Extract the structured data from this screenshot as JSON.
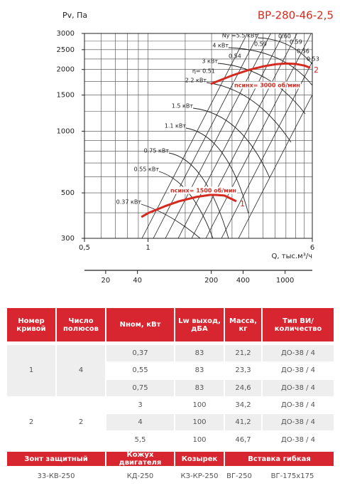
{
  "chart_data": {
    "type": "line",
    "title": "ВР-280-46-2,5",
    "y_label": "Pv, Па",
    "x_label": "Q, тыс.м³/ч",
    "xlim": [
      0.5,
      6
    ],
    "ylim": [
      300,
      3000
    ],
    "log_x": true,
    "log_y": true,
    "xticks": [
      {
        "value": 0.5,
        "label": "0,5"
      },
      1,
      6
    ],
    "yticks": [
      300,
      500,
      1000,
      1500,
      2000,
      2500,
      3000
    ],
    "x_grid": [
      0.5,
      0.6,
      0.7,
      0.8,
      0.9,
      1,
      1.5,
      2,
      2.5,
      3,
      3.5,
      4,
      4.5,
      5,
      5.5,
      6
    ],
    "y_grid": [
      300,
      400,
      500,
      600,
      700,
      800,
      900,
      1000,
      1250,
      1500,
      1750,
      2000,
      2250,
      2500,
      2750,
      3000
    ],
    "x2lim": [
      12.6,
      1810
    ],
    "x2ticks": [
      20,
      40,
      200,
      400,
      1000
    ],
    "series": [
      {
        "name": "1",
        "color": "#d42a1f",
        "x": [
          0.93,
          1,
          1.2,
          1.4,
          1.7,
          2,
          2.3,
          2.62
        ],
        "values": [
          381,
          398,
          430,
          455,
          478,
          490,
          485,
          455
        ]
      },
      {
        "name": "2",
        "color": "#d42a1f",
        "x": [
          1.98,
          2.5,
          3,
          3.5,
          4,
          4.5,
          5,
          5.5,
          5.86
        ],
        "values": [
          1700,
          1870,
          1990,
          2070,
          2120,
          2140,
          2130,
          2090,
          2040
        ]
      }
    ],
    "annotations": [
      "Ny =5.5 кВт",
      "4 кВт",
      "3 кВт",
      "η= 0.51",
      "2.2 кВт",
      "1.5 кВт",
      "1.1 кВт",
      "0.75 кВт",
      "0.55 кВт",
      "0.37 кВт",
      "0.60",
      "0.59",
      "0.59",
      "0.56",
      "0.53",
      "0.54",
      "nсинх= 3000 об/мин",
      "nсинх= 1500 об/мин"
    ]
  },
  "table": {
    "headers": [
      "Номер кривой",
      "Число полюсов",
      "Nном, кВт",
      "Lw выход, дБА",
      "Масса, кг",
      "Тип ВИ/ количество"
    ],
    "groups": [
      {
        "curve": "1",
        "poles": "4",
        "rows": [
          [
            "0,37",
            "83",
            "21,2",
            "ДО-38 / 4"
          ],
          [
            "0,55",
            "83",
            "23,3",
            "ДО-38 / 4"
          ],
          [
            "0,75",
            "83",
            "24,6",
            "ДО-38 / 4"
          ]
        ]
      },
      {
        "curve": "2",
        "poles": "2",
        "rows": [
          [
            "3",
            "100",
            "34,2",
            "ДО-38 / 4"
          ],
          [
            "4",
            "100",
            "41,2",
            "ДО-38 / 4"
          ],
          [
            "5,5",
            "100",
            "46,7",
            "ДО-38 / 4"
          ]
        ]
      }
    ]
  },
  "accessories": {
    "headers": [
      "Зонт защитный",
      "Кожух двигателя",
      "Козырек",
      "Вставка гибкая"
    ],
    "values": [
      "33-КВ-250",
      "КД-250",
      "КЗ-КР-250",
      "ВГ-250",
      "ВГ-175х175"
    ]
  }
}
